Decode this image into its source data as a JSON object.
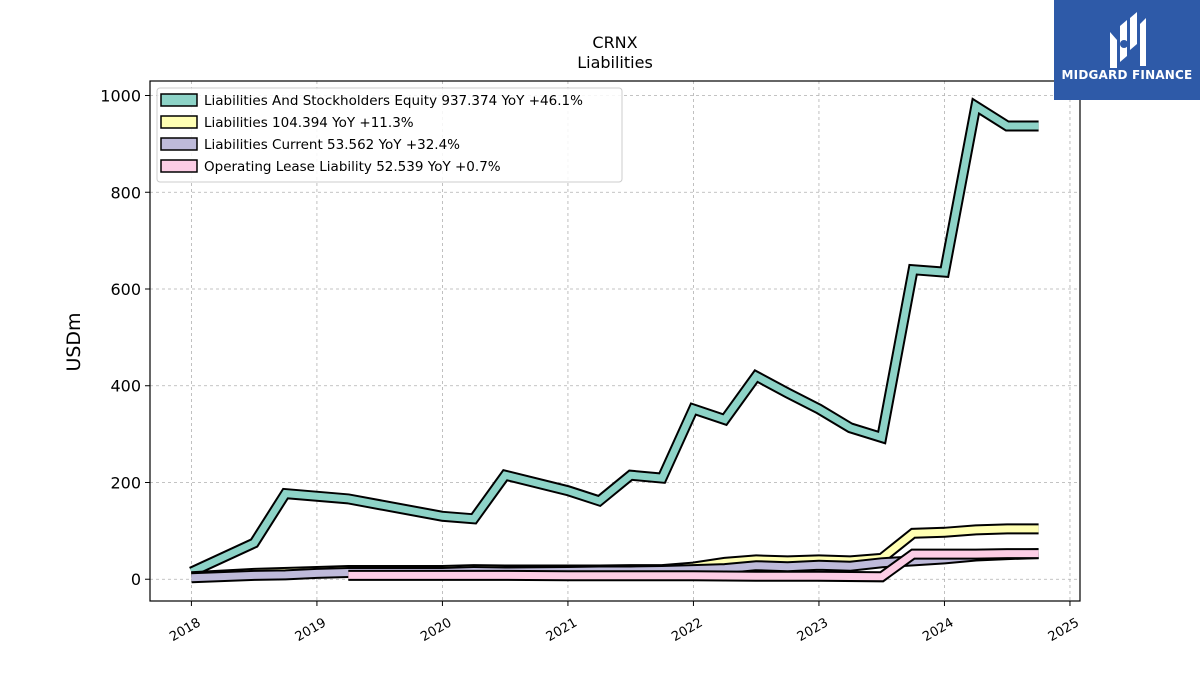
{
  "logo": {
    "text": "MIDGARD FINANCE",
    "color": "#2e5aa8"
  },
  "chart_data": {
    "type": "line",
    "title": "CRNX",
    "subtitle": "Liabilities",
    "xlabel": "",
    "ylabel": "USDm",
    "xlim": [
      2017.67,
      2025.08
    ],
    "ylim": [
      -45,
      1030
    ],
    "x_ticks": [
      "2018",
      "2019",
      "2020",
      "2021",
      "2022",
      "2023",
      "2024",
      "2025"
    ],
    "y_ticks": [
      0,
      200,
      400,
      600,
      800,
      1000
    ],
    "grid": true,
    "legend_position": "top-left",
    "series": [
      {
        "name": "Liabilities And Stockholders Equity  937.374 YoY +46.1%",
        "color": "#8dd3c7",
        "x": [
          2018.0,
          2018.5,
          2018.75,
          2019.25,
          2020.0,
          2020.25,
          2020.5,
          2021.0,
          2021.25,
          2021.5,
          2021.75,
          2022.0,
          2022.25,
          2022.5,
          2022.75,
          2023.0,
          2023.25,
          2023.5,
          2023.75,
          2024.0,
          2024.25,
          2024.5,
          2024.75
        ],
        "y": [
          15,
          75,
          177,
          166,
          130,
          125,
          215,
          183,
          162,
          215,
          209,
          352,
          330,
          420,
          385,
          352,
          313,
          293,
          640,
          635,
          978,
          937,
          937
        ]
      },
      {
        "name": "Liabilities  104.394 YoY +11.3%",
        "color": "#ffffb3",
        "x": [
          2018.0,
          2018.5,
          2019.0,
          2019.25,
          2020.0,
          2020.25,
          2020.5,
          2021.0,
          2021.25,
          2021.5,
          2021.75,
          2022.0,
          2022.25,
          2022.5,
          2022.75,
          2023.0,
          2023.25,
          2023.5,
          2023.75,
          2024.0,
          2024.25,
          2024.5,
          2024.75
        ],
        "y": [
          5,
          12,
          16,
          18,
          18,
          20,
          19,
          19,
          19,
          20,
          20,
          25,
          35,
          40,
          38,
          40,
          38,
          43,
          95,
          97,
          102,
          104,
          104
        ]
      },
      {
        "name": "Liabilities Current  53.562 YoY +32.4%",
        "color": "#bebada",
        "x": [
          2018.0,
          2018.5,
          2018.75,
          2019.0,
          2019.25,
          2020.0,
          2020.25,
          2020.5,
          2021.0,
          2021.25,
          2021.5,
          2021.75,
          2022.0,
          2022.25,
          2022.5,
          2022.75,
          2023.0,
          2023.25,
          2023.5,
          2023.75,
          2024.0,
          2024.25,
          2024.5,
          2024.75
        ],
        "y": [
          3,
          8,
          9,
          12,
          14,
          14,
          16,
          15,
          16,
          17,
          17,
          18,
          20,
          22,
          28,
          26,
          29,
          27,
          34,
          38,
          42,
          48,
          51,
          53
        ]
      },
      {
        "name": "Operating Lease Liability  52.539 YoY +0.7%",
        "color": "#fccde5",
        "x": [
          2019.25,
          2020.0,
          2020.5,
          2021.0,
          2021.5,
          2022.0,
          2022.5,
          2023.0,
          2023.5,
          2023.75,
          2024.0,
          2024.25,
          2024.5,
          2024.75
        ],
        "y": [
          8,
          8,
          8,
          7,
          7,
          7,
          6,
          6,
          5,
          52,
          52,
          52,
          53,
          53
        ]
      }
    ]
  }
}
